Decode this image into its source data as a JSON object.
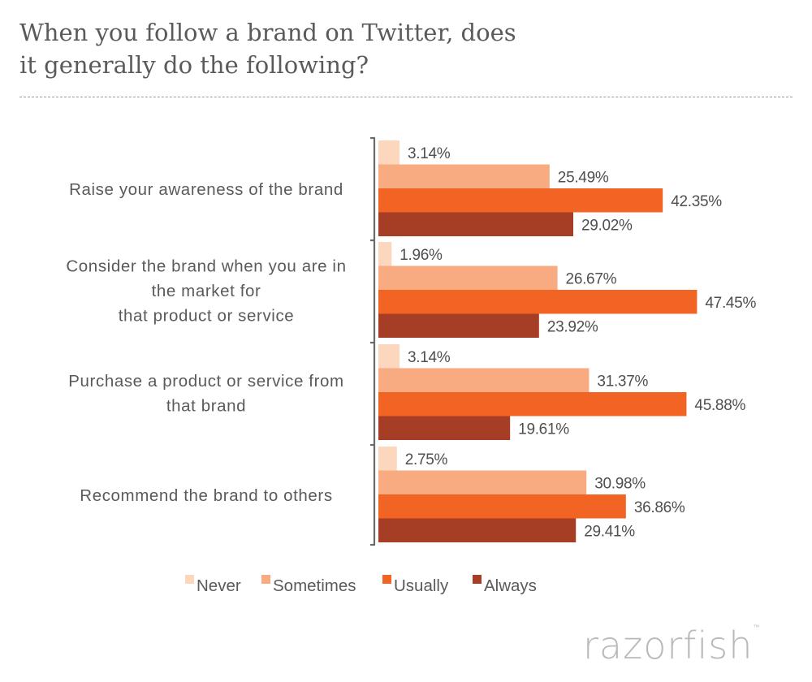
{
  "chart_data": {
    "type": "bar",
    "orientation": "horizontal",
    "title": "When you follow a brand on Twitter, does it generally do the following?",
    "title_lines": [
      "When you follow a brand on Twitter, does",
      "it generally do the following?"
    ],
    "categories": [
      [
        "Raise your awareness of the brand"
      ],
      [
        "Consider the brand when you are in",
        "the market for",
        "that product or service"
      ],
      [
        "Purchase a product or service from",
        "that brand"
      ],
      [
        "Recommend the brand to others"
      ]
    ],
    "series": [
      {
        "name": "Never",
        "color": "#fcd6bd",
        "values": [
          3.14,
          1.96,
          3.14,
          2.75
        ]
      },
      {
        "name": "Sometimes",
        "color": "#f8aa80",
        "values": [
          25.49,
          26.67,
          31.37,
          30.98
        ]
      },
      {
        "name": "Usually",
        "color": "#f26424",
        "values": [
          42.35,
          47.45,
          45.88,
          36.86
        ]
      },
      {
        "name": "Always",
        "color": "#a63d25",
        "values": [
          29.02,
          23.92,
          19.61,
          29.41
        ]
      }
    ],
    "value_suffix": "%",
    "legend": "bottom",
    "grid": false
  },
  "branding": {
    "logo_text": "razorfish",
    "logo_mark": "™"
  }
}
